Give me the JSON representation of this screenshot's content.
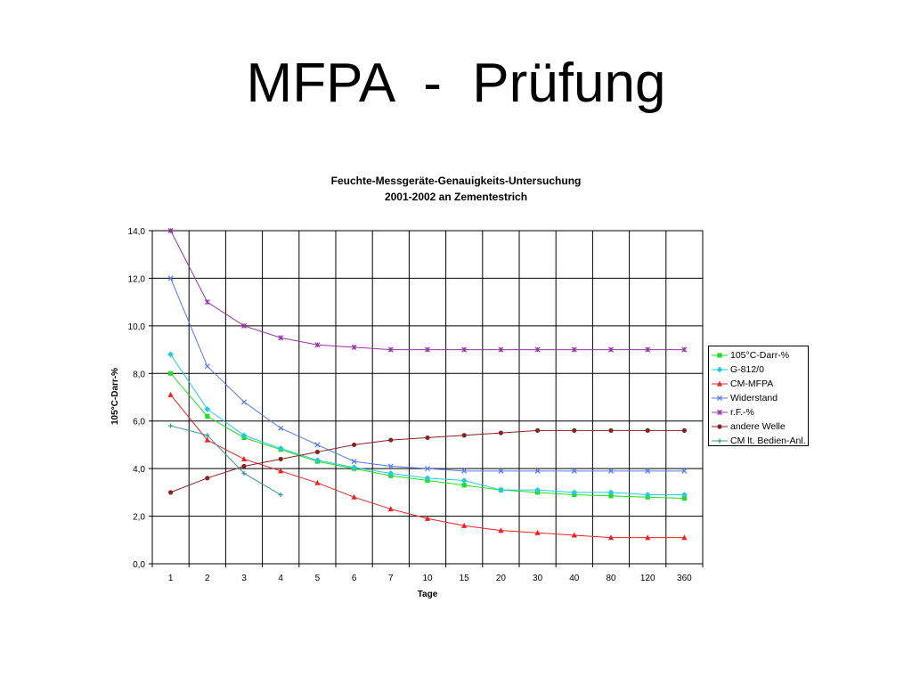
{
  "slide": {
    "title": "MFPA  -  Prüfung"
  },
  "chart_data": {
    "type": "line",
    "title_line1": "Feuchte-Messgeräte-Genauigkeits-Untersuchung",
    "title_line2": "2001-2002 an Zementestrich",
    "xlabel": "Tage",
    "ylabel": "105°C-Darr-%",
    "categories": [
      "1",
      "2",
      "3",
      "4",
      "5",
      "6",
      "7",
      "10",
      "15",
      "20",
      "30",
      "40",
      "80",
      "120",
      "360"
    ],
    "ylim": [
      0,
      14
    ],
    "yticks": [
      "0,0",
      "2,0",
      "4,0",
      "6,0",
      "8,0",
      "10,0",
      "12,0",
      "14,0"
    ],
    "grid": true,
    "legend_position": "right",
    "series": [
      {
        "name": "105°C-Darr-%",
        "color": "#22dd22",
        "marker": "square",
        "values": [
          8.0,
          6.2,
          5.3,
          4.8,
          4.3,
          4.0,
          3.7,
          3.5,
          3.3,
          3.1,
          3.0,
          2.9,
          2.85,
          2.8,
          2.75
        ]
      },
      {
        "name": "G-812/0",
        "color": "#22ccdd",
        "marker": "diamond",
        "values": [
          8.8,
          6.5,
          5.4,
          4.85,
          4.35,
          4.05,
          3.8,
          3.6,
          3.5,
          3.1,
          3.1,
          3.0,
          3.0,
          2.9,
          2.9
        ]
      },
      {
        "name": "CM-MFPA",
        "color": "#ee2222",
        "marker": "triangle",
        "values": [
          7.1,
          5.2,
          4.4,
          3.9,
          3.4,
          2.8,
          2.3,
          1.9,
          1.6,
          1.4,
          1.3,
          1.2,
          1.1,
          1.1,
          1.1
        ]
      },
      {
        "name": "Widerstand",
        "color": "#5577ee",
        "marker": "x",
        "values": [
          12.0,
          8.3,
          6.8,
          5.7,
          5.0,
          4.3,
          4.1,
          4.0,
          3.9,
          3.9,
          3.9,
          3.9,
          3.9,
          3.9,
          3.9
        ]
      },
      {
        "name": "r.F.-%",
        "color": "#9933aa",
        "marker": "star",
        "values": [
          14.0,
          11.0,
          10.0,
          9.5,
          9.2,
          9.1,
          9.0,
          9.0,
          9.0,
          9.0,
          9.0,
          9.0,
          9.0,
          9.0,
          9.0
        ]
      },
      {
        "name": "andere Welle",
        "color": "#882222",
        "marker": "circle",
        "values": [
          3.0,
          3.6,
          4.1,
          4.4,
          4.7,
          5.0,
          5.2,
          5.3,
          5.4,
          5.5,
          5.6,
          5.6,
          5.6,
          5.6,
          5.6
        ]
      },
      {
        "name": "CM lt. Bedien-Anl.",
        "color": "#339999",
        "marker": "plus",
        "values": [
          5.8,
          5.4,
          3.8,
          2.9,
          null,
          null,
          null,
          null,
          null,
          null,
          null,
          null,
          null,
          null,
          null
        ]
      }
    ]
  }
}
